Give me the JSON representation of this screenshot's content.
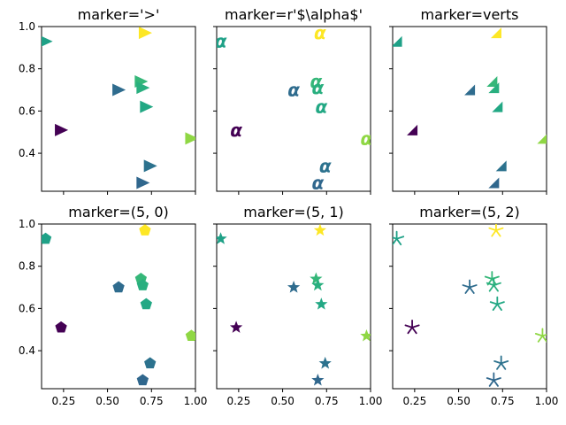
{
  "chart_data": [
    {
      "type": "scatter",
      "title": "marker='>'",
      "marker": "triangle-right",
      "x": [
        0.236,
        0.148,
        0.977,
        0.7,
        0.72,
        0.742,
        0.563,
        0.713,
        0.69,
        0.7
      ],
      "y": [
        0.51,
        0.93,
        0.47,
        0.26,
        0.62,
        0.34,
        0.7,
        0.97,
        0.74,
        0.71
      ],
      "colors": [
        "#440154",
        "#1fa187",
        "#8fd744",
        "#30678d",
        "#22a884",
        "#2c728e",
        "#2f6c8e",
        "#fde725",
        "#35b779",
        "#29af7f"
      ],
      "xlim": [
        0.125,
        1.0
      ],
      "ylim": [
        0.22,
        1.0
      ],
      "xticks": [
        "0.25",
        "0.50",
        "0.75",
        "1.00"
      ],
      "yticks": [
        "0.4",
        "0.6",
        "0.8",
        "1.0"
      ]
    },
    {
      "type": "scatter",
      "title": "marker=r'$\\alpha$'",
      "marker": "alpha",
      "x": [
        0.236,
        0.148,
        0.977,
        0.7,
        0.72,
        0.742,
        0.563,
        0.713,
        0.69,
        0.7
      ],
      "y": [
        0.51,
        0.93,
        0.47,
        0.26,
        0.62,
        0.34,
        0.7,
        0.97,
        0.74,
        0.71
      ],
      "colors": [
        "#440154",
        "#1fa187",
        "#8fd744",
        "#30678d",
        "#22a884",
        "#2c728e",
        "#2f6c8e",
        "#fde725",
        "#35b779",
        "#29af7f"
      ],
      "xlim": [
        0.125,
        1.0
      ],
      "ylim": [
        0.22,
        1.0
      ],
      "xticks": [
        "0.25",
        "0.50",
        "0.75",
        "1.00"
      ],
      "yticks": [
        "0.4",
        "0.6",
        "0.8",
        "1.0"
      ]
    },
    {
      "type": "scatter",
      "title": "marker=verts",
      "marker": "right-triangle-verts",
      "x": [
        0.236,
        0.148,
        0.977,
        0.7,
        0.72,
        0.742,
        0.563,
        0.713,
        0.69,
        0.7
      ],
      "y": [
        0.51,
        0.93,
        0.47,
        0.26,
        0.62,
        0.34,
        0.7,
        0.97,
        0.74,
        0.71
      ],
      "colors": [
        "#440154",
        "#1fa187",
        "#8fd744",
        "#30678d",
        "#22a884",
        "#2c728e",
        "#2f6c8e",
        "#fde725",
        "#35b779",
        "#29af7f"
      ],
      "xlim": [
        0.125,
        1.0
      ],
      "ylim": [
        0.22,
        1.0
      ],
      "xticks": [
        "0.25",
        "0.50",
        "0.75",
        "1.00"
      ],
      "yticks": [
        "0.4",
        "0.6",
        "0.8",
        "1.0"
      ]
    },
    {
      "type": "scatter",
      "title": "marker=(5, 0)",
      "marker": "pentagon",
      "x": [
        0.236,
        0.148,
        0.977,
        0.7,
        0.72,
        0.742,
        0.563,
        0.713,
        0.69,
        0.7
      ],
      "y": [
        0.51,
        0.93,
        0.47,
        0.26,
        0.62,
        0.34,
        0.7,
        0.97,
        0.74,
        0.71
      ],
      "colors": [
        "#440154",
        "#1fa187",
        "#8fd744",
        "#30678d",
        "#22a884",
        "#2c728e",
        "#2f6c8e",
        "#fde725",
        "#35b779",
        "#29af7f"
      ],
      "xlim": [
        0.125,
        1.0
      ],
      "ylim": [
        0.22,
        1.0
      ],
      "xticks": [
        "0.25",
        "0.50",
        "0.75",
        "1.00"
      ],
      "yticks": [
        "0.4",
        "0.6",
        "0.8",
        "1.0"
      ]
    },
    {
      "type": "scatter",
      "title": "marker=(5, 1)",
      "marker": "star",
      "x": [
        0.236,
        0.148,
        0.977,
        0.7,
        0.72,
        0.742,
        0.563,
        0.713,
        0.69,
        0.7
      ],
      "y": [
        0.51,
        0.93,
        0.47,
        0.26,
        0.62,
        0.34,
        0.7,
        0.97,
        0.74,
        0.71
      ],
      "colors": [
        "#440154",
        "#1fa187",
        "#8fd744",
        "#30678d",
        "#22a884",
        "#2c728e",
        "#2f6c8e",
        "#fde725",
        "#35b779",
        "#29af7f"
      ],
      "xlim": [
        0.125,
        1.0
      ],
      "ylim": [
        0.22,
        1.0
      ],
      "xticks": [
        "0.25",
        "0.50",
        "0.75",
        "1.00"
      ],
      "yticks": [
        "0.4",
        "0.6",
        "0.8",
        "1.0"
      ]
    },
    {
      "type": "scatter",
      "title": "marker=(5, 2)",
      "marker": "asterisk",
      "x": [
        0.236,
        0.148,
        0.977,
        0.7,
        0.72,
        0.742,
        0.563,
        0.713,
        0.69,
        0.7
      ],
      "y": [
        0.51,
        0.93,
        0.47,
        0.26,
        0.62,
        0.34,
        0.7,
        0.97,
        0.74,
        0.71
      ],
      "colors": [
        "#440154",
        "#1fa187",
        "#8fd744",
        "#30678d",
        "#22a884",
        "#2c728e",
        "#2f6c8e",
        "#fde725",
        "#35b779",
        "#29af7f"
      ],
      "xlim": [
        0.125,
        1.0
      ],
      "ylim": [
        0.22,
        1.0
      ],
      "xticks": [
        "0.25",
        "0.50",
        "0.75",
        "1.00"
      ],
      "yticks": [
        "0.4",
        "0.6",
        "0.8",
        "1.0"
      ]
    }
  ]
}
